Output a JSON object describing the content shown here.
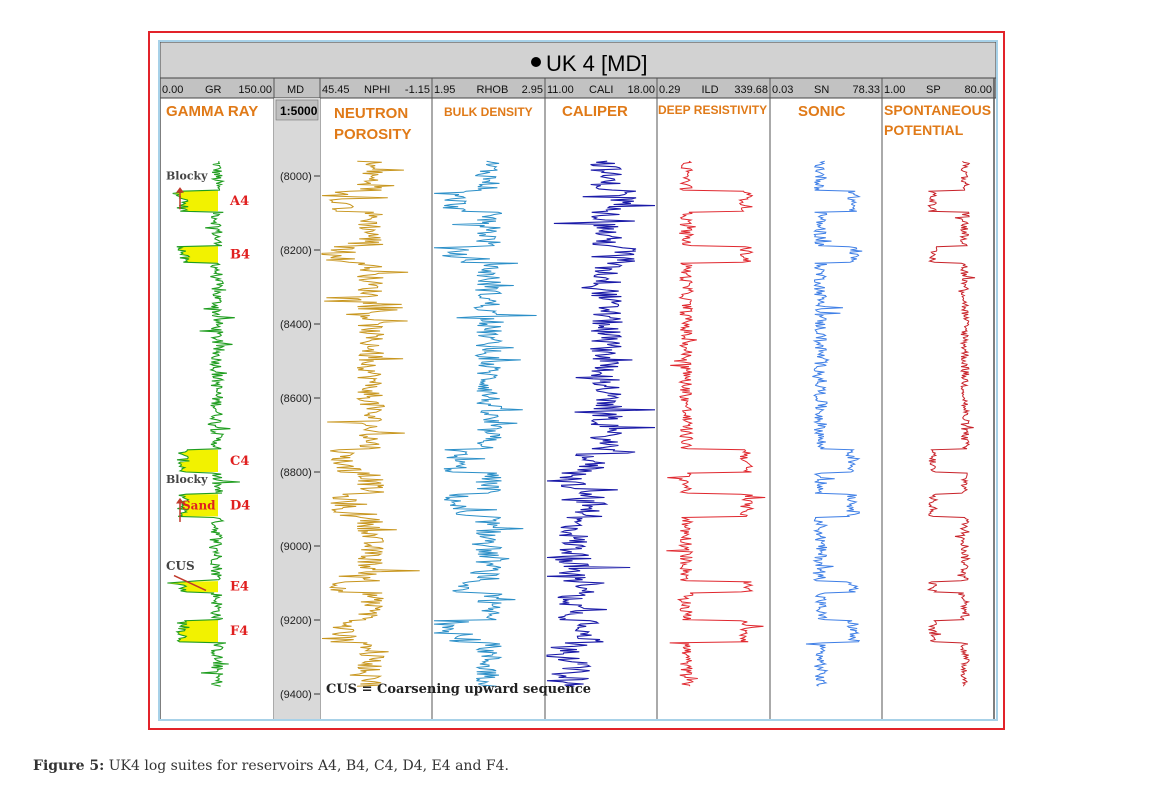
{
  "chart_data": {
    "type": "line",
    "title": "UK 4 [MD]",
    "header_ranges": [
      {
        "min": "0.00",
        "name": "GR",
        "max": "150.00"
      },
      {
        "min": "",
        "name": "MD",
        "max": ""
      },
      {
        "min": "45.45",
        "name": "NPHI",
        "max": "-1.15"
      },
      {
        "min": "1.95",
        "name": "RHOB",
        "max": "2.95"
      },
      {
        "min": "11.00",
        "name": "CALI",
        "max": "18.00"
      },
      {
        "min": "0.29",
        "name": "ILD",
        "max": "339.68"
      },
      {
        "min": "0.03",
        "name": "SN",
        "max": "78.33"
      },
      {
        "min": "1.00",
        "name": "SP",
        "max": "80.00"
      }
    ],
    "scale": "1:5000",
    "track_titles": [
      "GAMMA RAY",
      "",
      "NEUTRON POROSITY",
      "BULK DENSITY",
      "CALIPER",
      "DEEP RESISTIVITY",
      "SONIC",
      "SPONTANEOUS POTENTIAL"
    ],
    "depth_ticks": [
      "(8000)",
      "(8200)",
      "(8400)",
      "(8600)",
      "(8800)",
      "(9000)",
      "(9200)",
      "(9400)"
    ],
    "depth_values": [
      8000,
      8200,
      8400,
      8600,
      8800,
      9000,
      9200,
      9400
    ],
    "ylim": [
      7800,
      9430
    ],
    "reservoirs": [
      {
        "name": "A4",
        "top": 8040,
        "base": 8095
      },
      {
        "name": "B4",
        "top": 8190,
        "base": 8235
      },
      {
        "name": "C4",
        "top": 8740,
        "base": 8800
      },
      {
        "name": "D4",
        "top": 8860,
        "base": 8920
      },
      {
        "name": "E4",
        "top": 9095,
        "base": 9125
      },
      {
        "name": "F4",
        "top": 9200,
        "base": 9260
      }
    ],
    "annotations": {
      "blocky_1": "Blocky",
      "blocky_2": "Blocky",
      "sand": "Sand",
      "cus": "CUS",
      "cus_note": "CUS = Coarsening upward sequence"
    },
    "colors": {
      "gr": "#1f9d1f",
      "gr_fill": "#f2f200",
      "nphi": "#c8961e",
      "rhob": "#2b8fc8",
      "cali": "#1a1aa8",
      "ild": "#e0282f",
      "sn": "#3f7fe6",
      "sp": "#c8232a",
      "track_title": "#e07a18",
      "reservoir_label": "#e02020"
    },
    "series_depth_range": [
      7960,
      9380
    ]
  },
  "caption": {
    "label": "Figure 5:",
    "text": " UK4 log suites for reservoirs A4, B4, C4, D4, E4 and F4."
  }
}
